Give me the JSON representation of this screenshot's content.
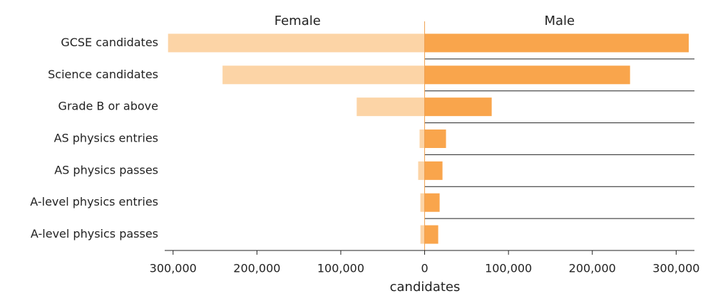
{
  "chart_data": {
    "type": "butterfly-bar",
    "x_label": "candidates",
    "categories": [
      "GCSE candidates",
      "Science candidates",
      "Grade B or above",
      "AS physics entries",
      "AS physics passes",
      "A-level physics entries",
      "A-level physics passes"
    ],
    "series": [
      {
        "name": "Female",
        "color": "#fcd4a6",
        "side": "left",
        "values": [
          306000,
          241000,
          81000,
          6000,
          7700,
          5100,
          5000
        ]
      },
      {
        "name": "Male",
        "color": "#f9a54c",
        "side": "right",
        "values": [
          315000,
          245000,
          80000,
          25500,
          21300,
          17900,
          16200
        ]
      }
    ],
    "xlim": [
      -310000,
      315000
    ],
    "xticks": [
      {
        "value": -300000,
        "label": "300,000"
      },
      {
        "value": -200000,
        "label": "200,000"
      },
      {
        "value": -100000,
        "label": "100,000"
      },
      0,
      {
        "value": 100000,
        "label": "100,000"
      },
      {
        "value": 200000,
        "label": "200,000"
      },
      {
        "value": 300000,
        "label": "300,000"
      }
    ]
  }
}
